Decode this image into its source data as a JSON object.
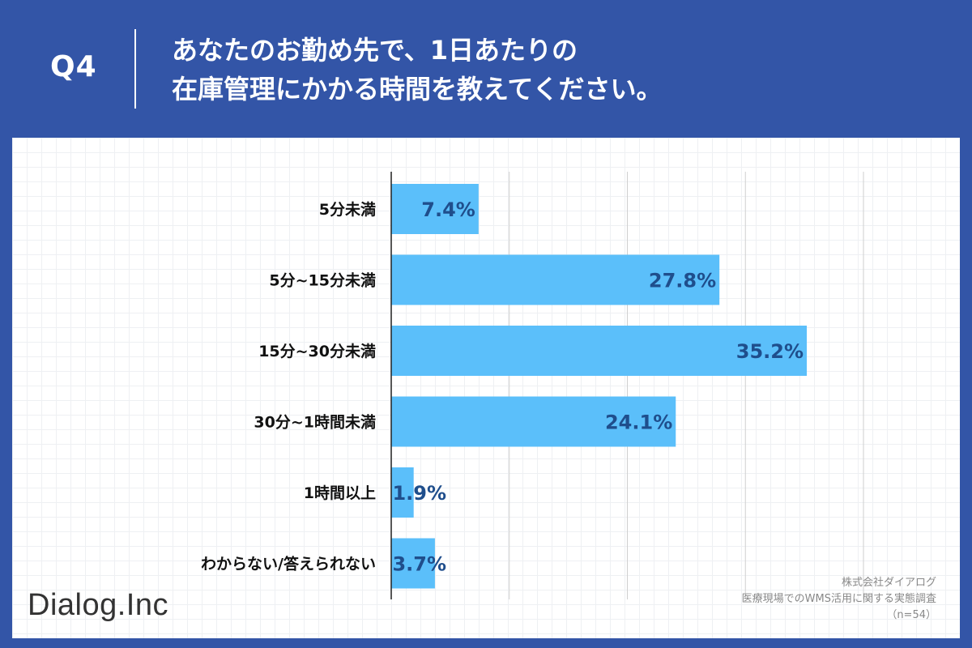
{
  "header": {
    "question_number": "Q4",
    "title_line1": "あなたのお勤め先で、1日あたりの",
    "title_line2": "在庫管理にかかる時間を教えてください。"
  },
  "colors": {
    "background": "#3355a7",
    "bar": "#5bbffa",
    "value_text": "#1f4e8c",
    "axis": "#222222",
    "grid": "#cfcfcf"
  },
  "chart_data": {
    "type": "bar",
    "orientation": "horizontal",
    "categories": [
      "5分未満",
      "5分~15分未満",
      "15分~30分未満",
      "30分~1時間未満",
      "1時間以上",
      "わからない/答えられない"
    ],
    "values": [
      7.4,
      27.8,
      35.2,
      24.1,
      1.9,
      3.7
    ],
    "value_labels": [
      "7.4%",
      "27.8%",
      "35.2%",
      "24.1%",
      "1.9%",
      "3.7%"
    ],
    "unit": "%",
    "xlim": [
      0,
      40
    ],
    "grid_step": 10
  },
  "footer": {
    "logo": "Dialog.Inc",
    "company": "株式会社ダイアログ",
    "survey_title": "医療現場でのWMS活用に関する実態調査",
    "sample": "（n=54）"
  }
}
